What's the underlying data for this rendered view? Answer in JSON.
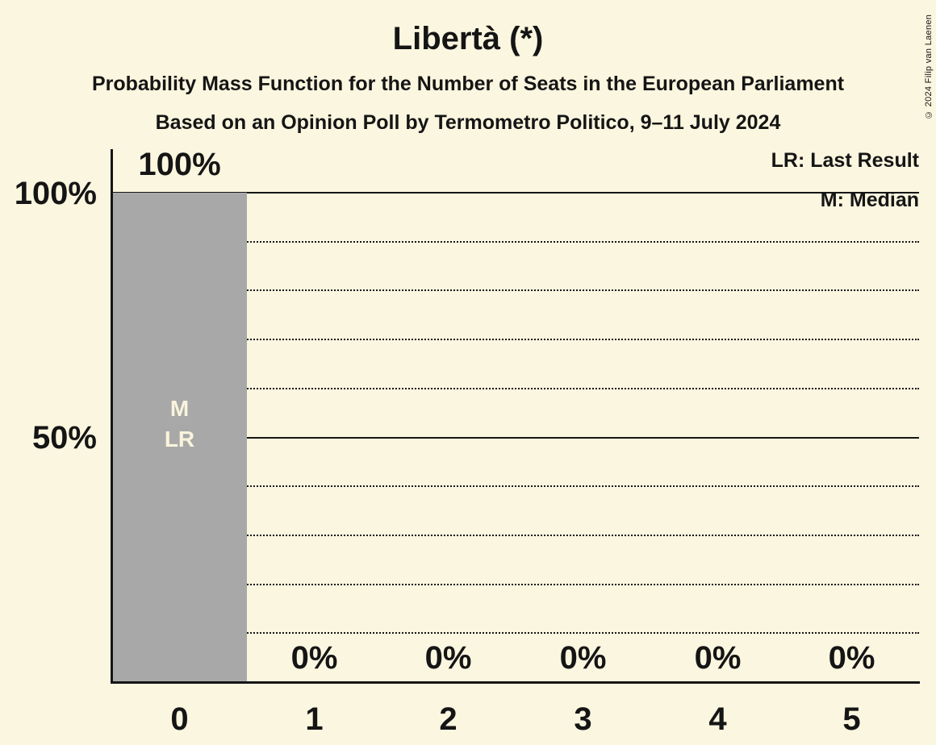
{
  "title": "Libertà (*)",
  "subtitles": [
    "Probability Mass Function for the Number of Seats in the European Parliament",
    "Based on an Opinion Poll by Termometro Politico, 9–11 July 2024"
  ],
  "legend": {
    "last_result": "LR: Last Result",
    "median": "M: Median"
  },
  "copyright": "© 2024 Filip van Laenen",
  "colors": {
    "background": "#FBF6DF",
    "bar": "#A8A8A8",
    "ink": "#151515",
    "bar_label": "#FAF4DD"
  },
  "chart_data": {
    "type": "bar",
    "title": "Libertà (*)",
    "categories": [
      "0",
      "1",
      "2",
      "3",
      "4",
      "5"
    ],
    "values": [
      100,
      0,
      0,
      0,
      0,
      0
    ],
    "value_labels": [
      "100%",
      "0%",
      "0%",
      "0%",
      "0%",
      "0%"
    ],
    "bar_annotations": [
      "M",
      "LR"
    ],
    "annotated_category": "0",
    "median_seats": 0,
    "last_result_seats": 0,
    "ylim": [
      0,
      100
    ],
    "yticks": [
      {
        "value": 100,
        "label": "100%"
      },
      {
        "value": 50,
        "label": "50%"
      }
    ],
    "gridlines": {
      "solid": [
        100,
        50
      ],
      "dotted": [
        90,
        80,
        70,
        60,
        40,
        30,
        20,
        10
      ]
    },
    "grid": true,
    "legend_position": "top-right",
    "bar_color": "#A8A8A8"
  }
}
